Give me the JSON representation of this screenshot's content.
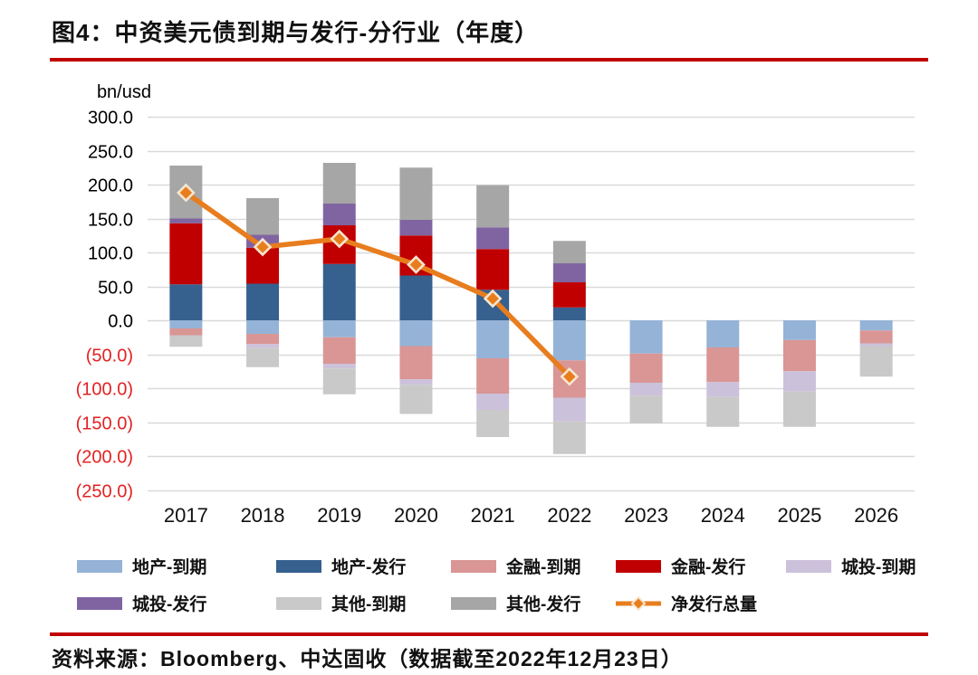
{
  "header": {
    "title": "图4：中资美元债到期与发行-分行业（年度）"
  },
  "footer": {
    "source": "资料来源：Bloomberg、中达固收（数据截至2022年12月23日）"
  },
  "chart_data": {
    "type": "bar",
    "subtype": "stacked-bars-positive-negative-with-line",
    "title": "中资美元债到期与发行-分行业（年度）",
    "unit_label": "bn/usd",
    "xlabel": "",
    "ylabel": "bn/usd",
    "categories": [
      "2017",
      "2018",
      "2019",
      "2020",
      "2021",
      "2022",
      "2023",
      "2024",
      "2025",
      "2026"
    ],
    "y_axis": {
      "min": -250,
      "max": 300,
      "tick_step": 50,
      "gridlines": true,
      "positive_tick_color": "#000000",
      "negative_tick_color": "#e32222",
      "negative_format": "parentheses",
      "gridline_color": "#d9d9d9"
    },
    "bar_series": [
      {
        "name": "地产-到期",
        "stack": "maturity",
        "color": "#95b3d7",
        "values": [
          -12,
          -20,
          -25,
          -38,
          -56,
          -59,
          -49,
          -40,
          -29,
          -15
        ]
      },
      {
        "name": "地产-发行",
        "stack": "issuance",
        "color": "#36608e",
        "values": [
          53,
          54,
          83,
          66,
          45,
          19,
          0,
          0,
          0,
          0
        ]
      },
      {
        "name": "金融-到期",
        "stack": "maturity",
        "color": "#d99694",
        "values": [
          -10,
          -15,
          -39,
          -49,
          -52,
          -55,
          -43,
          -51,
          -46,
          -19
        ]
      },
      {
        "name": "金融-发行",
        "stack": "issuance",
        "color": "#c00000",
        "values": [
          90,
          53,
          57,
          59,
          60,
          37,
          0,
          0,
          0,
          0
        ]
      },
      {
        "name": "城投-到期",
        "stack": "maturity",
        "color": "#ccc1da",
        "values": [
          0,
          -6,
          -7,
          -8,
          -24,
          -35,
          -19,
          -22,
          -30,
          -4
        ]
      },
      {
        "name": "城投-发行",
        "stack": "issuance",
        "color": "#8064a2",
        "values": [
          7,
          19,
          32,
          23,
          32,
          28,
          0,
          0,
          0,
          0
        ]
      },
      {
        "name": "其他-到期",
        "stack": "maturity",
        "color": "#c9c9c9",
        "values": [
          -17,
          -28,
          -38,
          -43,
          -40,
          -48,
          -41,
          -44,
          -52,
          -45
        ]
      },
      {
        "name": "其他-发行",
        "stack": "issuance",
        "color": "#a6a6a6",
        "values": [
          78,
          54,
          60,
          77,
          62,
          33,
          0,
          0,
          0,
          0
        ]
      }
    ],
    "line_series": {
      "name": "净发行总量",
      "color": "#e87d1e",
      "marker": "diamond",
      "marker_stroke": "#f7e6cf",
      "values": [
        188,
        108,
        120,
        82,
        32,
        -83,
        null,
        null,
        null,
        null
      ]
    },
    "legend_position": "bottom"
  },
  "legend": {
    "rows": [
      [
        "地产-到期",
        "地产-发行",
        "金融-到期",
        "金融-发行",
        "城投-到期"
      ],
      [
        "城投-发行",
        "其他-到期",
        "其他-发行",
        "净发行总量"
      ]
    ]
  }
}
